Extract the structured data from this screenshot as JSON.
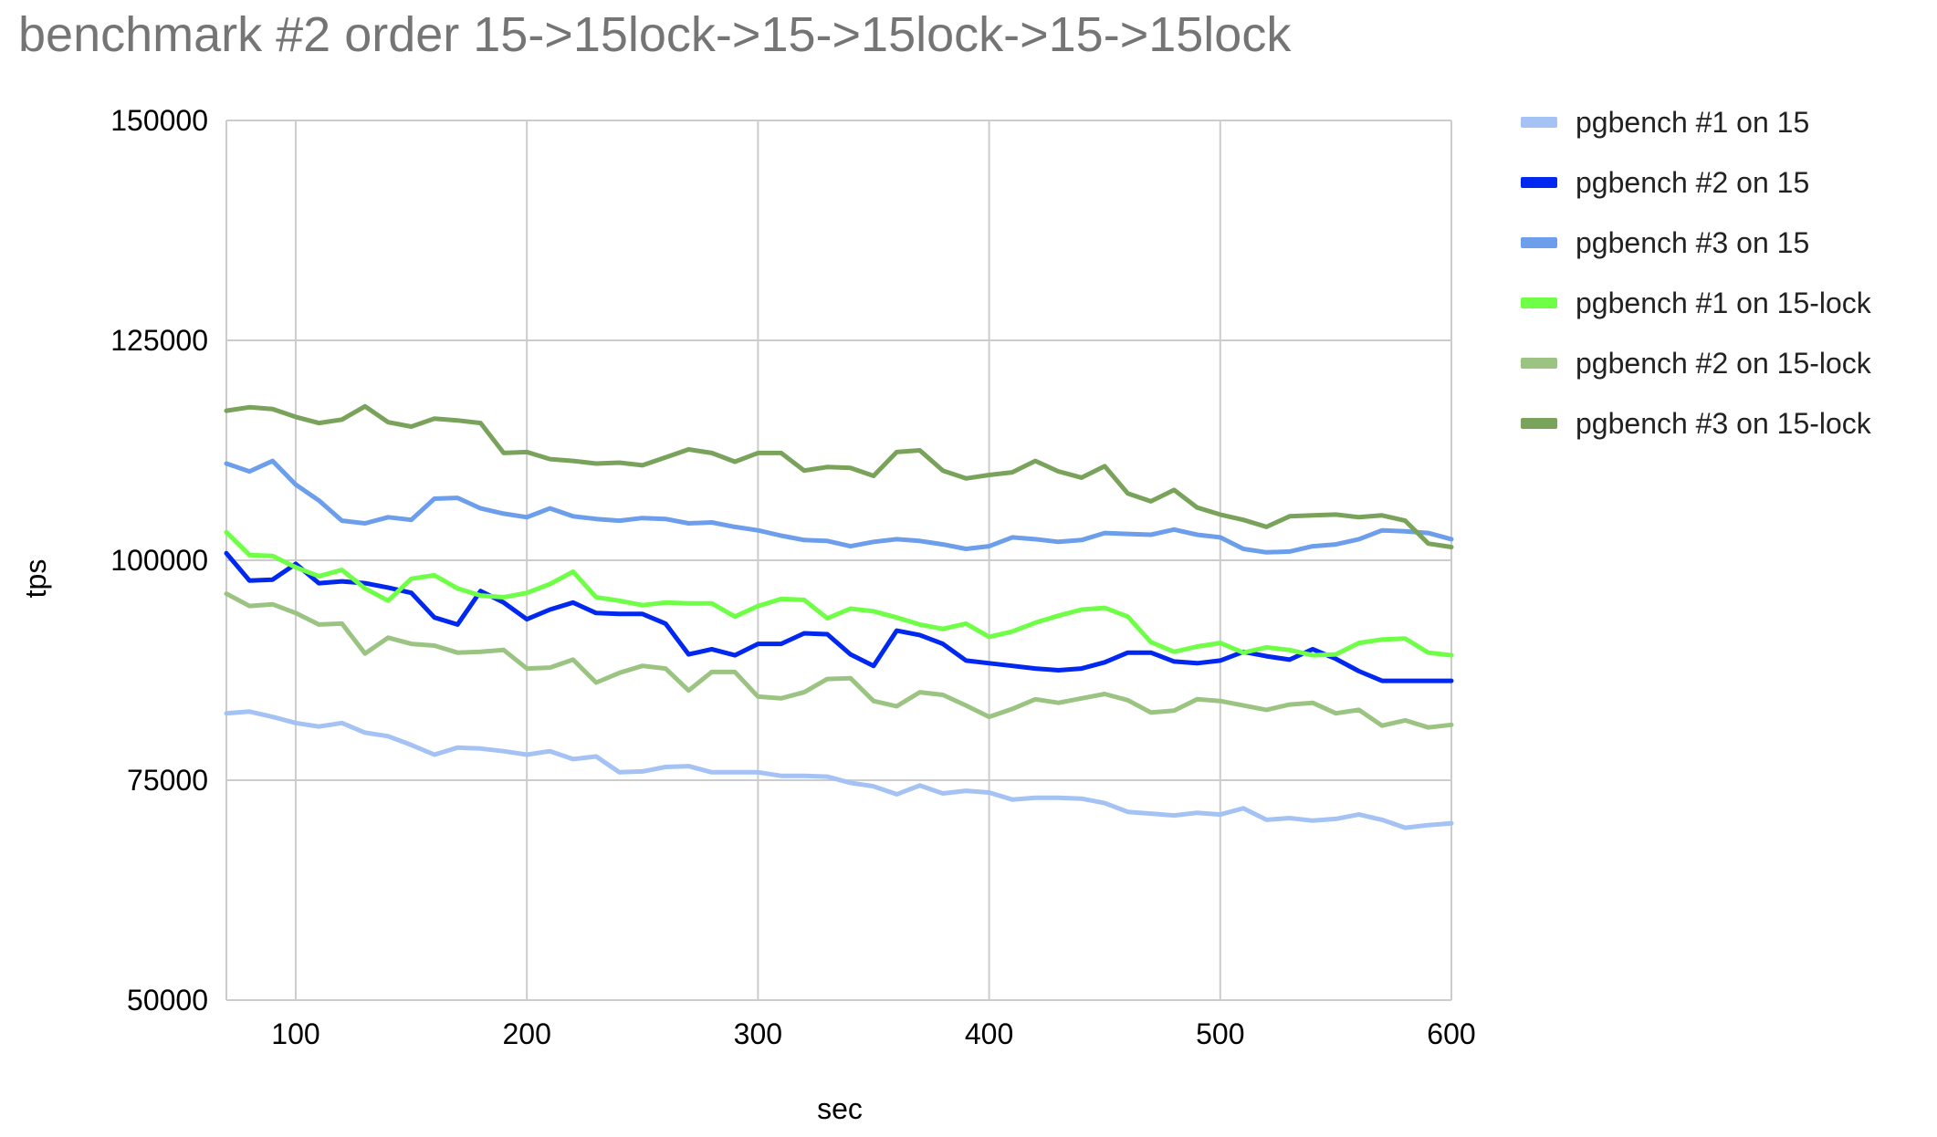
{
  "chart_data": {
    "type": "line",
    "title": "benchmark #2 order 15->15lock->15->15lock->15->15lock",
    "xlabel": "sec",
    "ylabel": "tps",
    "xlim": [
      70,
      600
    ],
    "ylim": [
      50000,
      150000
    ],
    "x_ticks": [
      100,
      200,
      300,
      400,
      500,
      600
    ],
    "y_ticks": [
      50000,
      75000,
      100000,
      125000,
      150000
    ],
    "x_tick_labels": [
      "100",
      "200",
      "300",
      "400",
      "500",
      "600"
    ],
    "y_tick_labels": [
      "50000",
      "75000",
      "100000",
      "125000",
      "150000"
    ],
    "grid": true,
    "legend_position": "right",
    "x": [
      70,
      80,
      90,
      100,
      110,
      120,
      130,
      140,
      150,
      160,
      170,
      180,
      190,
      200,
      210,
      220,
      230,
      240,
      250,
      260,
      270,
      280,
      290,
      300,
      310,
      320,
      330,
      340,
      350,
      360,
      370,
      380,
      390,
      400,
      410,
      420,
      430,
      440,
      450,
      460,
      470,
      480,
      490,
      500,
      510,
      520,
      530,
      540,
      550,
      560,
      570,
      580,
      590,
      600
    ],
    "series": [
      {
        "name": "pgbench #1 on 15",
        "color": "#a4c2f4",
        "values": [
          82600,
          82800,
          82200,
          81500,
          81100,
          81500,
          80400,
          80000,
          79000,
          77900,
          78700,
          78600,
          78300,
          77900,
          78300,
          77400,
          77700,
          75900,
          76000,
          76500,
          76600,
          75900,
          75900,
          75900,
          75500,
          75500,
          75400,
          74700,
          74300,
          73400,
          74400,
          73500,
          73800,
          73600,
          72800,
          73000,
          73000,
          72900,
          72400,
          71400,
          71200,
          71000,
          71300,
          71100,
          71800,
          70500,
          70700,
          70400,
          70600,
          71100,
          70500,
          69600,
          69900,
          70100
        ]
      },
      {
        "name": "pgbench #2 on 15",
        "color": "#0028f0",
        "values": [
          100800,
          97700,
          97800,
          99600,
          97400,
          97600,
          97400,
          96900,
          96300,
          93500,
          92700,
          96500,
          95200,
          93300,
          94400,
          95200,
          94000,
          93900,
          93900,
          92800,
          89300,
          89900,
          89200,
          90500,
          90500,
          91700,
          91600,
          89300,
          88000,
          92000,
          91500,
          90500,
          88600,
          88300,
          88000,
          87700,
          87500,
          87700,
          88400,
          89500,
          89500,
          88500,
          88300,
          88600,
          89600,
          89100,
          88700,
          89900,
          88800,
          87400,
          86300,
          86300,
          86300,
          86300
        ]
      },
      {
        "name": "pgbench #3 on 15",
        "color": "#6d9eeb",
        "values": [
          111000,
          110100,
          111300,
          108600,
          106800,
          104500,
          104200,
          104900,
          104600,
          107000,
          107100,
          105900,
          105300,
          104900,
          105900,
          105000,
          104700,
          104500,
          104800,
          104700,
          104200,
          104300,
          103800,
          103400,
          102800,
          102300,
          102200,
          101600,
          102100,
          102400,
          102200,
          101800,
          101300,
          101600,
          102600,
          102400,
          102100,
          102300,
          103100,
          103000,
          102900,
          103500,
          102900,
          102600,
          101300,
          100900,
          101000,
          101600,
          101800,
          102400,
          103400,
          103300,
          103100,
          102400
        ]
      },
      {
        "name": "pgbench #1 on 15-lock",
        "color": "#6eff46",
        "values": [
          103200,
          100600,
          100500,
          99200,
          98200,
          98900,
          96800,
          95400,
          97900,
          98300,
          96800,
          96000,
          95800,
          96300,
          97300,
          98700,
          95800,
          95400,
          94900,
          95200,
          95100,
          95100,
          93600,
          94800,
          95600,
          95500,
          93400,
          94500,
          94200,
          93500,
          92700,
          92200,
          92800,
          91300,
          91900,
          92900,
          93700,
          94400,
          94600,
          93600,
          90700,
          89600,
          90200,
          90600,
          89500,
          90100,
          89800,
          89200,
          89300,
          90600,
          91000,
          91100,
          89500,
          89200
        ]
      },
      {
        "name": "pgbench #2 on 15-lock",
        "color": "#9bc482",
        "values": [
          96200,
          94800,
          95000,
          94000,
          92700,
          92800,
          89400,
          91200,
          90500,
          90300,
          89500,
          89600,
          89800,
          87700,
          87800,
          88700,
          86100,
          87200,
          88000,
          87700,
          85200,
          87300,
          87300,
          84500,
          84300,
          85000,
          86500,
          86600,
          84000,
          83400,
          85000,
          84700,
          83500,
          82200,
          83100,
          84200,
          83800,
          84300,
          84800,
          84100,
          82700,
          82900,
          84200,
          84000,
          83500,
          83000,
          83600,
          83800,
          82600,
          83000,
          81200,
          81800,
          81000,
          81300
        ]
      },
      {
        "name": "pgbench #3 on 15-lock",
        "color": "#79a35a",
        "values": [
          117000,
          117400,
          117200,
          116300,
          115600,
          116000,
          117500,
          115700,
          115200,
          116100,
          115900,
          115600,
          112200,
          112300,
          111500,
          111300,
          111000,
          111100,
          110800,
          111700,
          112600,
          112200,
          111200,
          112200,
          112200,
          110200,
          110600,
          110500,
          109600,
          112300,
          112500,
          110200,
          109300,
          109700,
          110000,
          111300,
          110100,
          109400,
          110700,
          107600,
          106700,
          108000,
          106000,
          105200,
          104600,
          103800,
          105000,
          105100,
          105200,
          104900,
          105100,
          104500,
          101900,
          101500
        ]
      }
    ]
  }
}
